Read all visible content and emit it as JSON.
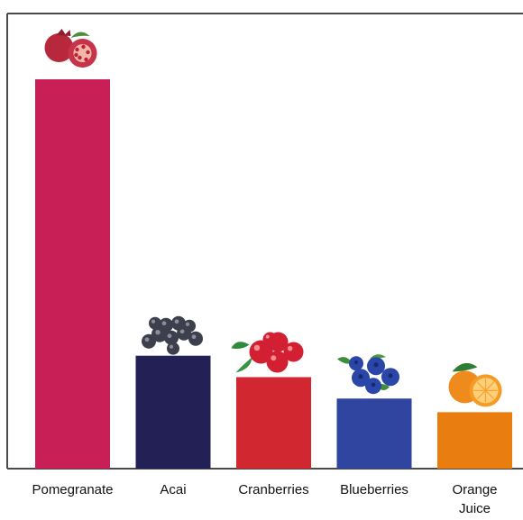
{
  "chart_data": {
    "type": "bar",
    "title": "",
    "xlabel": "",
    "ylabel": "",
    "categories": [
      "Pomegranate",
      "Acai",
      "Cranberries",
      "Blueberries",
      "Orange Juice"
    ],
    "values": [
      100,
      29,
      23.5,
      18,
      14.5
    ],
    "ylim": [
      0,
      100
    ],
    "grid": false,
    "legend": "none",
    "colors": [
      "#c91f57",
      "#222055",
      "#d12730",
      "#2f45a0",
      "#ea7d10"
    ],
    "icons": [
      "pomegranate-icon",
      "acai-berries-icon",
      "cranberries-icon",
      "blueberries-icon",
      "orange-icon"
    ]
  }
}
